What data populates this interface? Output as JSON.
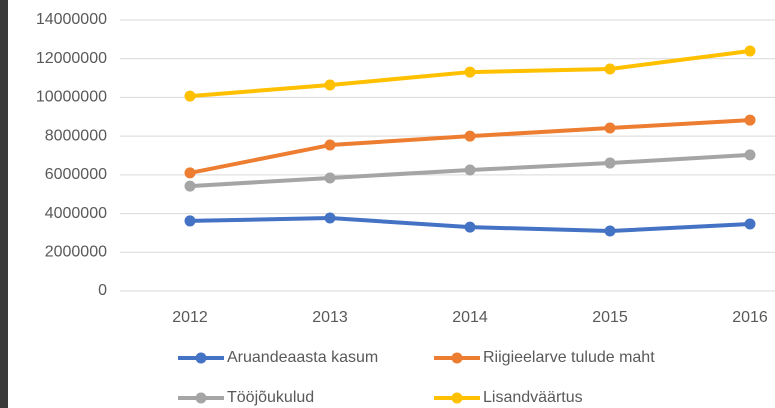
{
  "chart_data": {
    "type": "line",
    "categories": [
      "2012",
      "2013",
      "2014",
      "2015",
      "2016"
    ],
    "series": [
      {
        "name": "Aruandeaasta kasum",
        "color": "#4472c4",
        "values": [
          3620000,
          3770000,
          3300000,
          3100000,
          3460000
        ]
      },
      {
        "name": "Riigieelarve tulude maht",
        "color": "#ed7d31",
        "values": [
          6100000,
          7540000,
          8000000,
          8420000,
          8830000
        ]
      },
      {
        "name": "Tööjõukulud",
        "color": "#a5a5a5",
        "values": [
          5420000,
          5840000,
          6250000,
          6610000,
          7030000
        ]
      },
      {
        "name": "Lisandväärtus",
        "color": "#ffc000",
        "values": [
          10070000,
          10640000,
          11310000,
          11470000,
          12400000
        ]
      }
    ],
    "ylim": [
      0,
      14000000
    ],
    "yticks": [
      0,
      2000000,
      4000000,
      6000000,
      8000000,
      10000000,
      12000000,
      14000000
    ],
    "grid": true,
    "legend": "bottom"
  }
}
